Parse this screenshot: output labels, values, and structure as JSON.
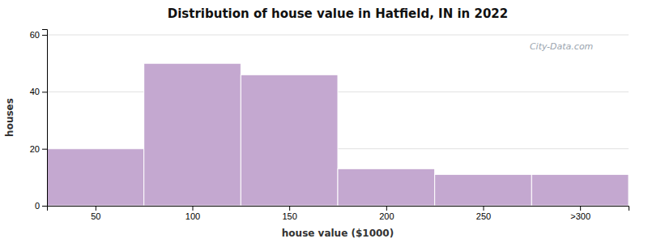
{
  "chart_data": {
    "type": "histogram",
    "title": "Distribution of house value in Hatfield, IN in 2022",
    "x_label": "house value ($1000)",
    "y_label": "houses",
    "bins": [
      25,
      75,
      125,
      175,
      225,
      275,
      325
    ],
    "values": [
      20,
      50,
      46,
      13,
      11,
      11
    ],
    "color": "#C4A8D0",
    "xlim": [
      25,
      325
    ],
    "xticks": [
      50,
      100,
      150,
      200,
      250,
      {
        "value": 300,
        "label": ">300"
      }
    ],
    "ylim": [
      0,
      62
    ],
    "yticks": [
      0,
      20,
      40,
      60
    ],
    "grid": true,
    "annotations": [
      "City-Data.com"
    ]
  }
}
